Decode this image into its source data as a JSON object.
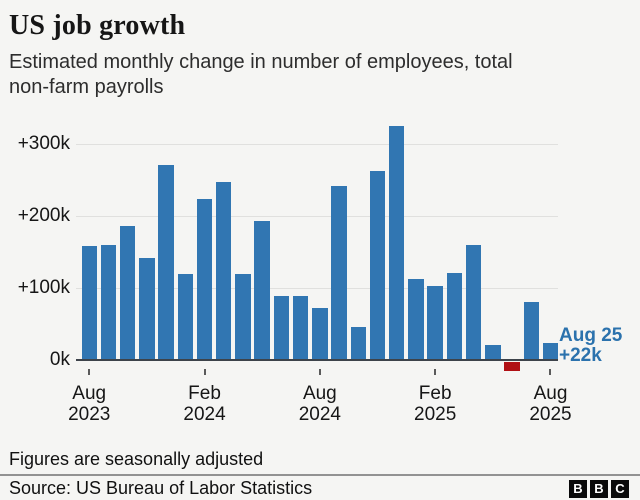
{
  "header": {
    "title": "US job growth",
    "subtitle": "Estimated monthly change in number of employees, total\nnon-farm payrolls"
  },
  "chart_data": {
    "type": "bar",
    "title": "US job growth",
    "subtitle": "Estimated monthly change in number of employees, total non-farm payrolls",
    "unit": "thousands of jobs (k)",
    "x": [
      "Aug 2023",
      "Sep 2023",
      "Oct 2023",
      "Nov 2023",
      "Dec 2023",
      "Jan 2024",
      "Feb 2024",
      "Mar 2024",
      "Apr 2024",
      "May 2024",
      "Jun 2024",
      "Jul 2024",
      "Aug 2024",
      "Sep 2024",
      "Oct 2024",
      "Nov 2024",
      "Dec 2024",
      "Jan 2025",
      "Feb 2025",
      "Mar 2025",
      "Apr 2025",
      "May 2025",
      "Jun 2025",
      "Jul 2025",
      "Aug 2025"
    ],
    "values": [
      157,
      159,
      185,
      140,
      269,
      118,
      222,
      246,
      118,
      192,
      87,
      88,
      71,
      240,
      44,
      261,
      323,
      111,
      102,
      120,
      158,
      19,
      -13,
      79,
      22
    ],
    "yticks": [
      {
        "label": "+300k",
        "value": 300
      },
      {
        "label": "+200k",
        "value": 200
      },
      {
        "label": "+100k",
        "value": 100
      },
      {
        "label": "0k",
        "value": 0
      }
    ],
    "xticks": [
      {
        "index": 0,
        "line1": "Aug",
        "line2": "2023"
      },
      {
        "index": 6,
        "line1": "Feb",
        "line2": "2024"
      },
      {
        "index": 12,
        "line1": "Aug",
        "line2": "2024"
      },
      {
        "index": 18,
        "line1": "Feb",
        "line2": "2025"
      },
      {
        "index": 24,
        "line1": "Aug",
        "line2": "2025"
      }
    ],
    "ylim": [
      -30,
      333
    ],
    "grid": true,
    "legend": false,
    "annotation": {
      "line1": "Aug 25",
      "line2": "+22k",
      "target_index": 24
    }
  },
  "annotation": {
    "line1": "Aug 25",
    "line2": "+22k"
  },
  "footer": {
    "note": "Figures are seasonally adjusted",
    "source": "Source: US Bureau of Labor Statistics",
    "logo_letters": [
      "B",
      "B",
      "C"
    ]
  },
  "colors": {
    "bar": "#3176b2",
    "negative_bar": "#b01014",
    "annotation": "#2b72ad",
    "background": "#f5f5f3",
    "gridline": "#e0e0de",
    "baseline": "#3d434a"
  }
}
